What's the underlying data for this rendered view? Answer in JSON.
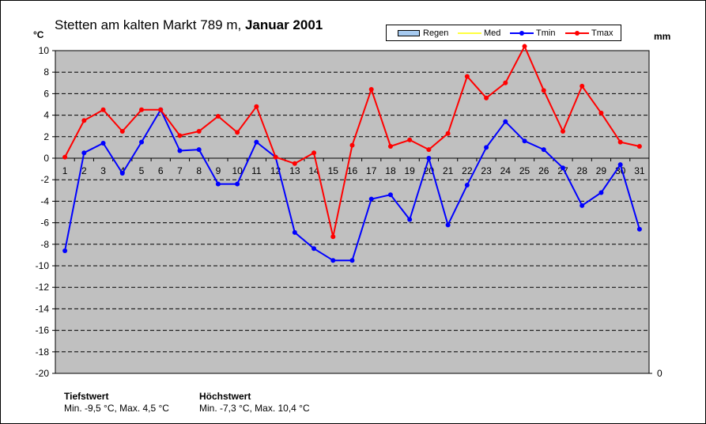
{
  "header": {
    "title_plain": "Stetten am kalten Markt 789 m, ",
    "title_bold": "Januar 2001",
    "left_unit": "°C",
    "right_unit": "mm"
  },
  "legend": {
    "regen": "Regen",
    "med": "Med",
    "tmin": "Tmin",
    "tmax": "Tmax"
  },
  "colors": {
    "plot_bg": "#c0c0c0",
    "regen": "#a6caf0",
    "med": "#ffff00",
    "tmin": "#0000ff",
    "tmax": "#ff0000"
  },
  "footer": {
    "min_title": "Tiefstwert",
    "min_text": "Min. -9,5 °C, Max. 4,5 °C",
    "max_title": "Höchstwert",
    "max_text": "Min. -7,3 °C, Max. 10,4 °C"
  },
  "chart_data": {
    "type": "line",
    "title": "Stetten am kalten Markt 789 m, Januar 2001",
    "x": [
      1,
      2,
      3,
      4,
      5,
      6,
      7,
      8,
      9,
      10,
      11,
      12,
      13,
      14,
      15,
      16,
      17,
      18,
      19,
      20,
      21,
      22,
      23,
      24,
      25,
      26,
      27,
      28,
      29,
      30,
      31
    ],
    "ylim": [
      -20,
      10
    ],
    "yticks": [
      10,
      8,
      6,
      4,
      2,
      0,
      -2,
      -4,
      -6,
      -8,
      -10,
      -12,
      -14,
      -16,
      -18,
      -20
    ],
    "y2ticks": [
      0
    ],
    "grid": true,
    "legend_position": "top-right",
    "series": [
      {
        "name": "Tmin",
        "values": [
          -8.6,
          0.5,
          1.4,
          -1.4,
          1.5,
          4.5,
          0.7,
          0.8,
          -2.4,
          -2.4,
          1.5,
          0.1,
          -6.9,
          -8.4,
          -9.5,
          -9.5,
          -3.8,
          -3.4,
          -5.7,
          0.0,
          -6.2,
          -2.5,
          1.0,
          3.4,
          1.6,
          0.8,
          -0.9,
          -4.4,
          -3.2,
          -0.6,
          -6.6
        ]
      },
      {
        "name": "Tmax",
        "values": [
          0.1,
          3.5,
          4.5,
          2.5,
          4.5,
          4.5,
          2.1,
          2.5,
          3.9,
          2.4,
          4.8,
          0.1,
          -0.5,
          0.5,
          -7.3,
          1.2,
          6.4,
          1.1,
          1.7,
          0.8,
          2.3,
          7.6,
          5.6,
          7.0,
          10.4,
          6.3,
          2.5,
          6.7,
          4.2,
          1.5,
          1.1
        ]
      }
    ]
  }
}
